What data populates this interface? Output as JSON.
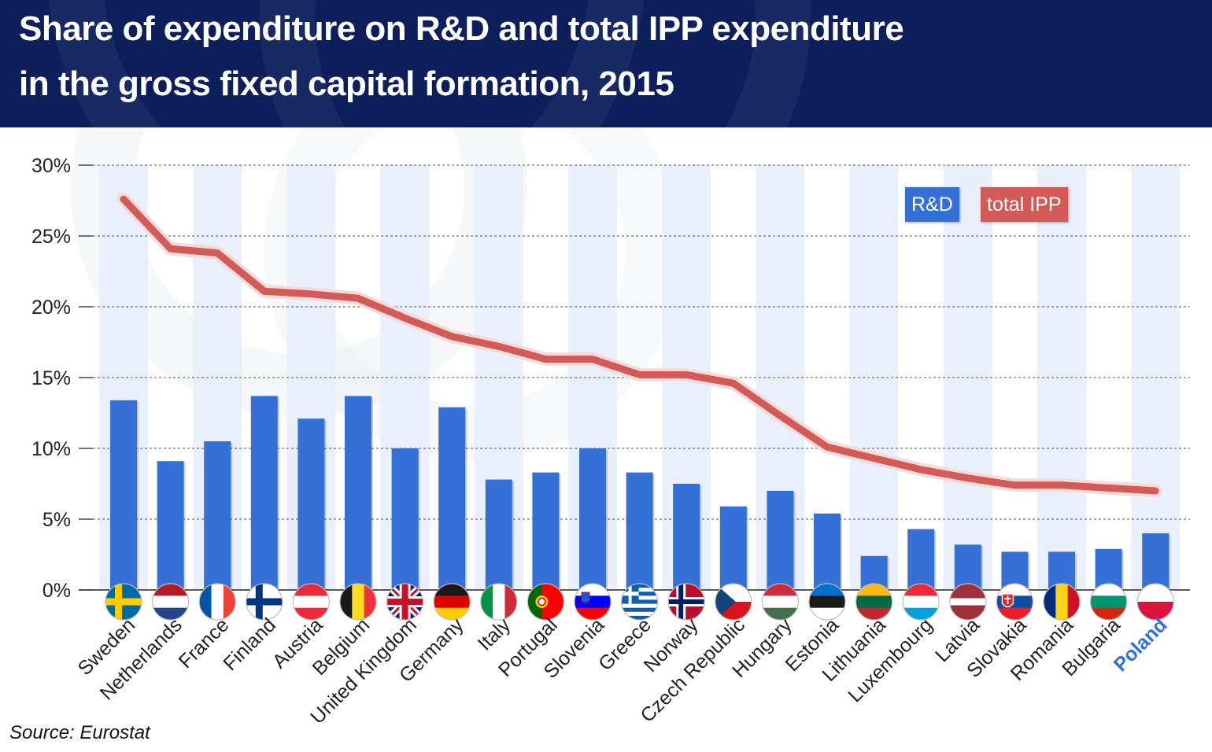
{
  "title": {
    "line1": "Share of expenditure on R&D and total IPP expenditure",
    "line2": "in the gross fixed capital formation, 2015"
  },
  "source": "Source: Eurostat",
  "colors": {
    "header_bg": "#0c1f5b",
    "rd_bar": "#3570d6",
    "ipp_line": "#d35a56",
    "stripe": "#e9f0fb",
    "highlight_label": "#3570d6"
  },
  "legend": {
    "rd": "R&D",
    "ipp": "total IPP"
  },
  "chart_data": {
    "type": "bar",
    "categories": [
      "Sweden",
      "Netherlands",
      "France",
      "Finland",
      "Austria",
      "Belgium",
      "United Kingdom",
      "Germany",
      "Italy",
      "Portugal",
      "Slovenia",
      "Greece",
      "Norway",
      "Czech Republic",
      "Hungary",
      "Estonia",
      "Lithuania",
      "Luxembourg",
      "Latvia",
      "Slovakia",
      "Romania",
      "Bulgaria",
      "Poland"
    ],
    "series": [
      {
        "name": "R&D",
        "type": "bar",
        "values": [
          13.4,
          9.1,
          10.5,
          13.7,
          12.1,
          13.7,
          10.0,
          12.9,
          7.8,
          8.3,
          10.0,
          8.3,
          7.5,
          5.9,
          7.0,
          5.4,
          2.4,
          4.3,
          3.2,
          2.7,
          2.7,
          2.9,
          4.0
        ]
      },
      {
        "name": "total IPP",
        "type": "line",
        "values": [
          27.6,
          24.1,
          23.8,
          21.1,
          20.9,
          20.6,
          19.2,
          17.9,
          17.2,
          16.3,
          16.3,
          15.2,
          15.2,
          14.6,
          12.3,
          10.1,
          9.3,
          8.5,
          7.9,
          7.4,
          7.4,
          7.2,
          7.0
        ]
      }
    ],
    "ylim": [
      0,
      30
    ],
    "yticks": [
      0,
      5,
      10,
      15,
      20,
      25,
      30
    ],
    "ytick_suffix": "%",
    "grid": "horizontal dashed",
    "legend_position": "top-right",
    "highlight_category": "Poland"
  }
}
